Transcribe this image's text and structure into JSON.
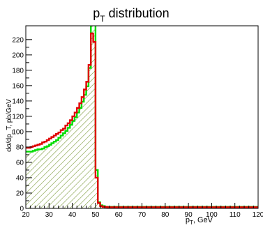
{
  "chart_data": {
    "type": "histogram",
    "title_main": "p",
    "title_sub": "T",
    "title_rest": " distribution",
    "xlabel_main": "p",
    "xlabel_sub": "T",
    "xlabel_rest": ", GeV",
    "ylabel": "dσ/dp_T, pb/GeV",
    "xlim": [
      20,
      120
    ],
    "ylim": [
      0,
      238
    ],
    "x_ticks": [
      20,
      30,
      40,
      50,
      60,
      70,
      80,
      90,
      100,
      110,
      120
    ],
    "y_ticks": [
      0,
      10,
      20,
      30,
      40,
      50,
      60,
      70,
      80,
      90,
      100,
      110,
      120,
      130,
      140,
      150,
      160,
      170,
      180,
      190,
      200,
      210,
      220
    ],
    "y_tick_labels": [
      0,
      20,
      40,
      60,
      80,
      100,
      120,
      140,
      160,
      180,
      200,
      220
    ],
    "bin_width": 1,
    "colors": {
      "red": "#e00000",
      "green": "#00dd00",
      "hatch": "#6b8e23"
    },
    "series": [
      {
        "color": "red",
        "hatched": false,
        "values": [
          79,
          79,
          80,
          81,
          82,
          83,
          84,
          86,
          87,
          89,
          91,
          93,
          95,
          97,
          99,
          102,
          104,
          108,
          111,
          115,
          120,
          125,
          131,
          137,
          145,
          155,
          165,
          187,
          228,
          217,
          40,
          7,
          3,
          2,
          2,
          1.5,
          1.5,
          1.5,
          1.5,
          1.5,
          1.5,
          1.5,
          1.5,
          1.5,
          1.5,
          1.5,
          1.5,
          1.5,
          1.5,
          1.5,
          1.5,
          1.5,
          1.5,
          1.5,
          1.5,
          1.5,
          1.5,
          1.5,
          1.5,
          1.5,
          1.5,
          1.5,
          1.5,
          1.5,
          1.5,
          1.5,
          1.5,
          1.5,
          1.5,
          1.5,
          1.5,
          1.5,
          1.5,
          1.5,
          1.5,
          1.5,
          1.5,
          1.5,
          1.5,
          1.5,
          1.5,
          1.5,
          1.5,
          1.5,
          1.5,
          1.5,
          1.5,
          1.5,
          1.5,
          1.5,
          1.5,
          1.5,
          1.5,
          1.5,
          1.5,
          1.5,
          1.5,
          1.5,
          1.5,
          1.5
        ]
      },
      {
        "color": "green",
        "hatched": true,
        "values": [
          74,
          74,
          74,
          75,
          76,
          77,
          77,
          78,
          80,
          81,
          83,
          85,
          87,
          89,
          92,
          95,
          98,
          101,
          105,
          109,
          114,
          119,
          125,
          131,
          139,
          148,
          159,
          183,
          245,
          245,
          50,
          8,
          4,
          3,
          2,
          2,
          2,
          2,
          2,
          2,
          2,
          2,
          2,
          2,
          2,
          2,
          2,
          2,
          2,
          2,
          2,
          2,
          2,
          2,
          2,
          2,
          2,
          2,
          2,
          2,
          2,
          2,
          2,
          2,
          2,
          2,
          2,
          2,
          2,
          2,
          2,
          2,
          2,
          2,
          2,
          2,
          2,
          2,
          2,
          2,
          2,
          2,
          2,
          2,
          2,
          2,
          2,
          2,
          2,
          2,
          2,
          2,
          2,
          2,
          2,
          2,
          2,
          2,
          2,
          2,
          2,
          2,
          2,
          2
        ]
      }
    ]
  }
}
